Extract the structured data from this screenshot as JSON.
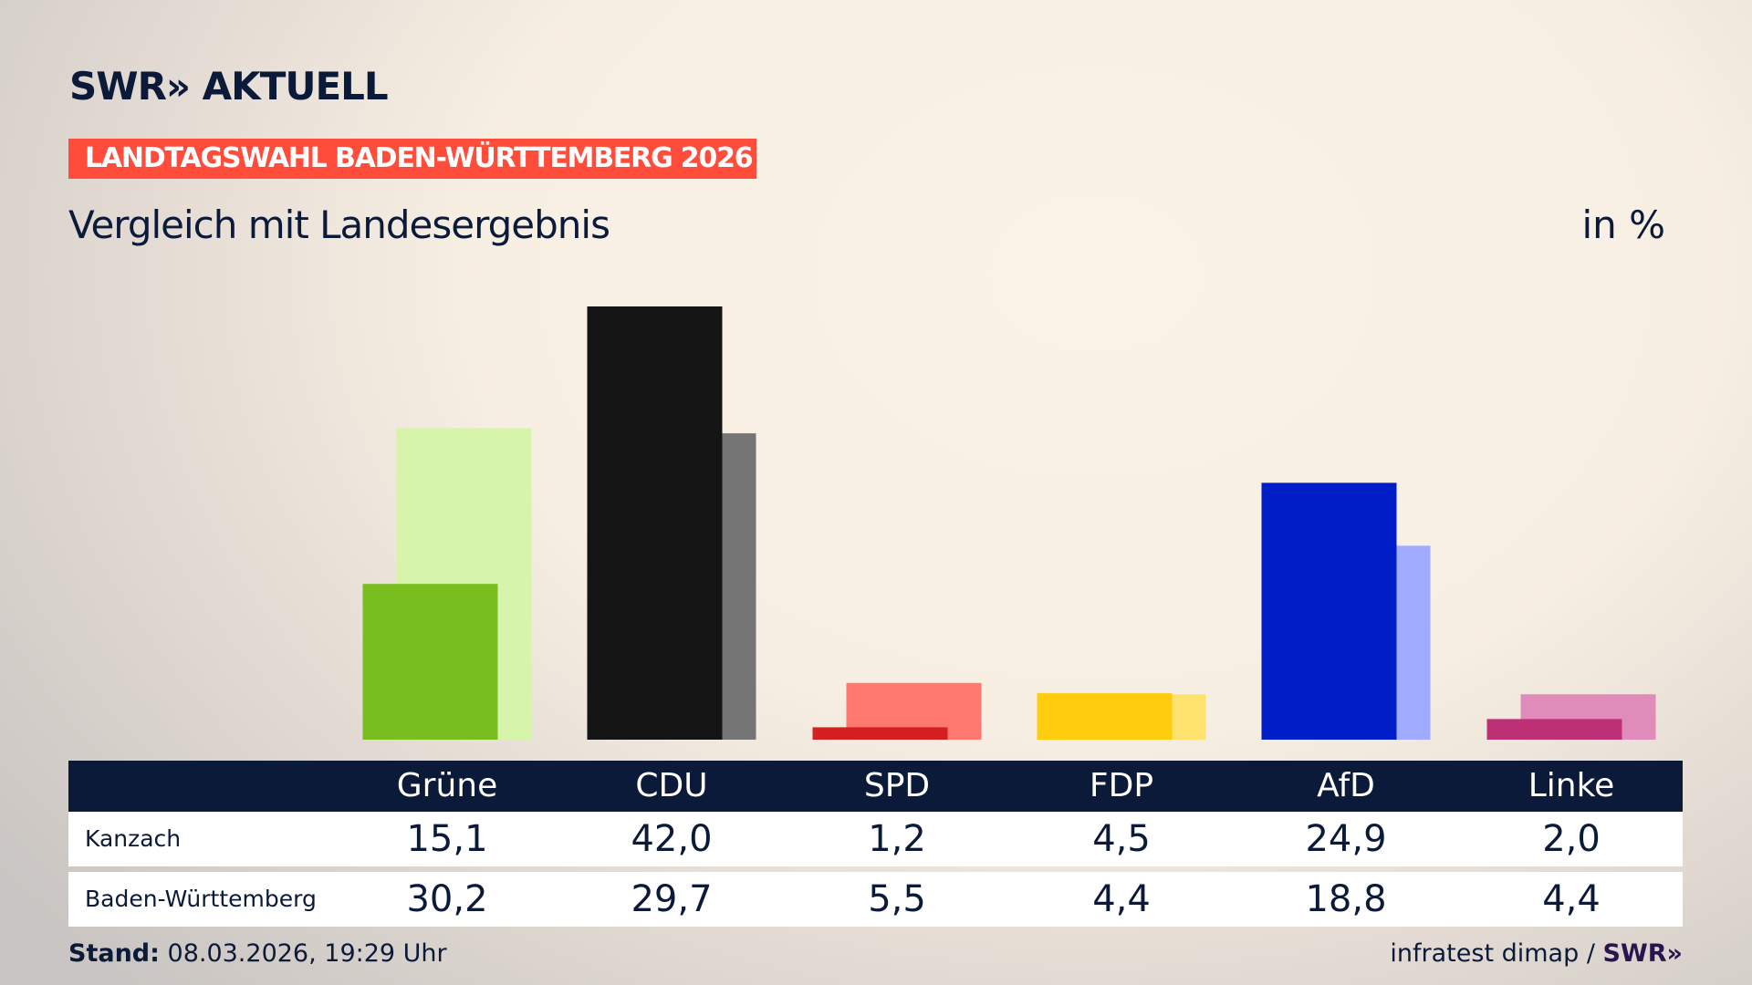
{
  "header": {
    "logo": "SWR» AKTUELL",
    "banner": "LANDTAGSWAHL BADEN-WÜRTTEMBERG 2026",
    "subtitle": "Vergleich mit Landesergebnis",
    "unit": "in %"
  },
  "chart_data": {
    "type": "bar",
    "categories": [
      "Grüne",
      "CDU",
      "SPD",
      "FDP",
      "AfD",
      "Linke"
    ],
    "series": [
      {
        "name": "Kanzach",
        "values": [
          15.1,
          42.0,
          1.2,
          4.5,
          24.9,
          2.0
        ],
        "colors": [
          "#78be1e",
          "#141414",
          "#d42020",
          "#ffcc0e",
          "#001ec8",
          "#be3075"
        ]
      },
      {
        "name": "Baden-Württemberg",
        "values": [
          30.2,
          29.7,
          5.5,
          4.4,
          18.8,
          4.4
        ],
        "colors": [
          "#d6f5ab",
          "#757575",
          "#ff7870",
          "#ffe26e",
          "#a0aaff",
          "#e08cbb"
        ]
      }
    ],
    "ylim": [
      0,
      42
    ]
  },
  "footer": {
    "stand_label": "Stand:",
    "stand_value": "08.03.2026, 19:29 Uhr",
    "source": "infratest dimap /",
    "source_logo": "SWR»"
  }
}
